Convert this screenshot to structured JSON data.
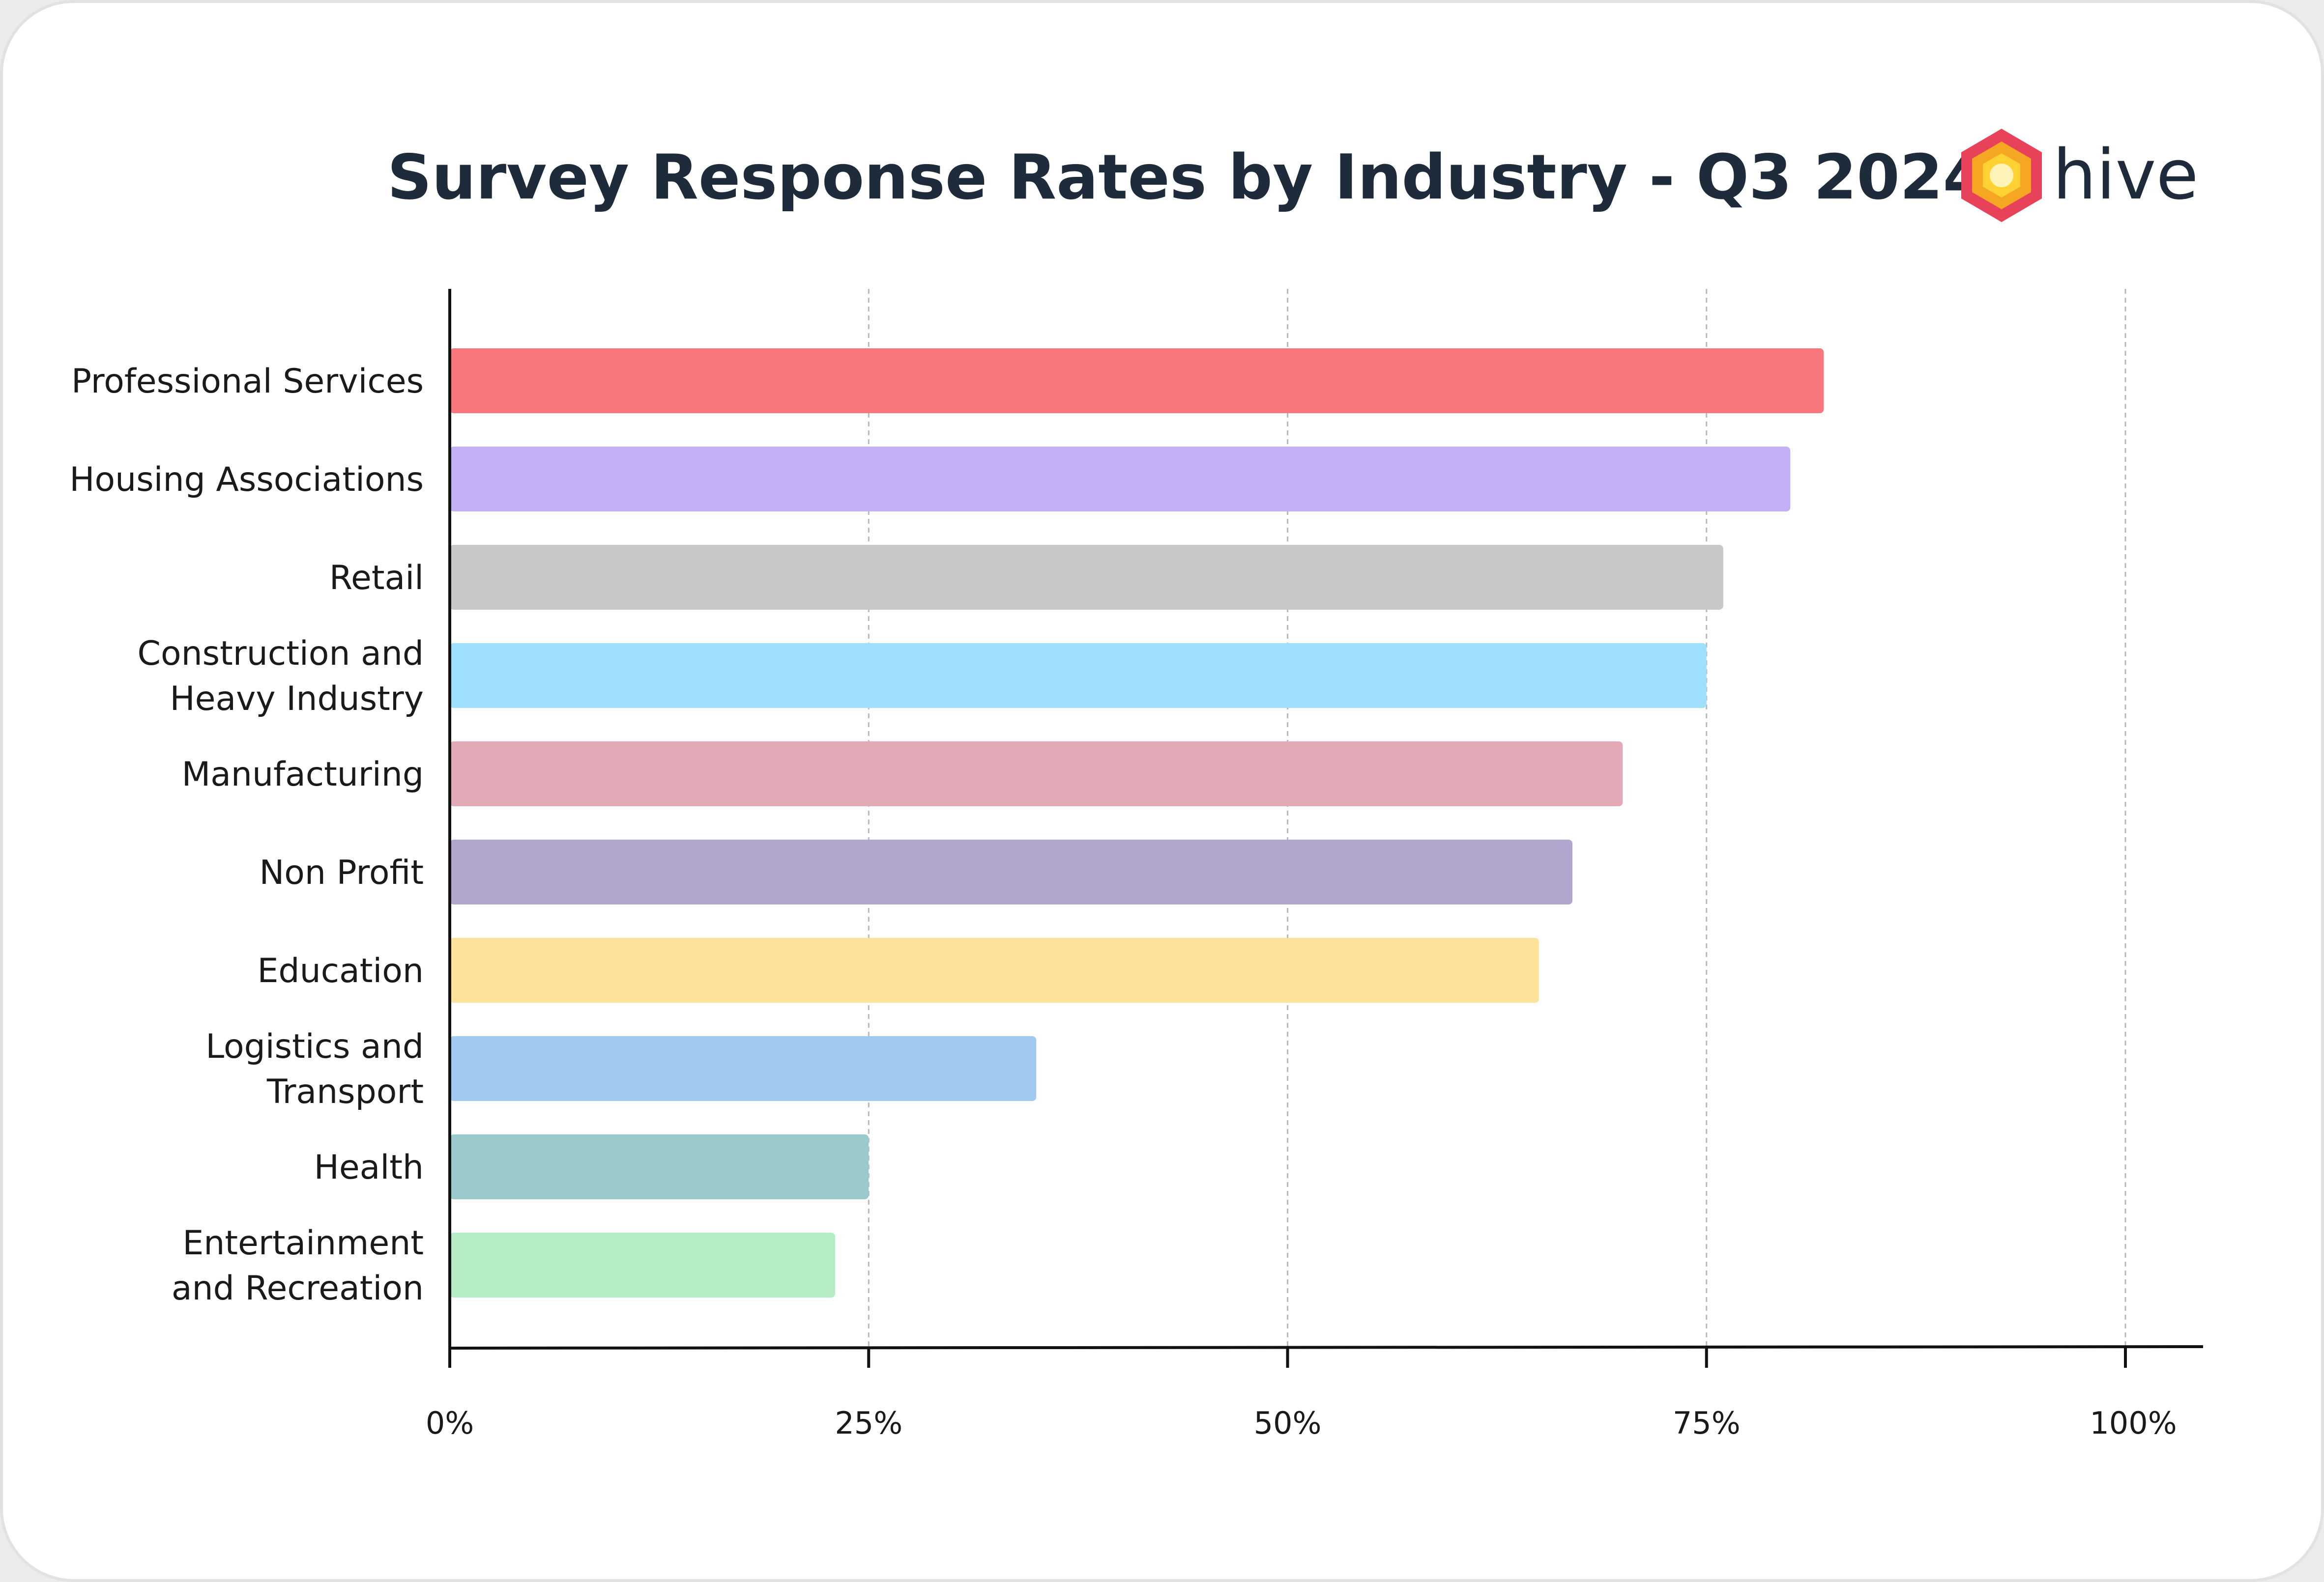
{
  "brand": {
    "name": "hive",
    "colors": {
      "outer": "#e8425a",
      "middle": "#f5a623",
      "inner": "#ffd233",
      "center": "#fff4b8"
    }
  },
  "chart_data": {
    "type": "bar",
    "orientation": "horizontal",
    "title": "Survey Response Rates by Industry - Q3 2024",
    "xlabel": "",
    "ylabel": "",
    "xlim": [
      0,
      100
    ],
    "grid": "vertical dashed",
    "ticks": [
      {
        "value": 0,
        "label": "0%"
      },
      {
        "value": 25,
        "label": "25%"
      },
      {
        "value": 50,
        "label": "50%"
      },
      {
        "value": 75,
        "label": "75%"
      },
      {
        "value": 100,
        "label": "100%"
      }
    ],
    "bars": [
      {
        "label": [
          "Professional Services"
        ],
        "value": 82,
        "color": "#f7777c"
      },
      {
        "label": [
          "Housing Associations"
        ],
        "value": 80,
        "color": "#c4b0f6"
      },
      {
        "label": [
          "Retail"
        ],
        "value": 76,
        "color": "#c8c8c8"
      },
      {
        "label": [
          "Construction and",
          "Heavy Industry"
        ],
        "value": 75,
        "color": "#9ee0fd"
      },
      {
        "label": [
          "Manufacturing"
        ],
        "value": 70,
        "color": "#e2aab6"
      },
      {
        "label": [
          "Non Profit"
        ],
        "value": 67,
        "color": "#b2a6cf"
      },
      {
        "label": [
          "Education"
        ],
        "value": 65,
        "color": "#fee19b"
      },
      {
        "label": [
          "Logistics and",
          "Transport"
        ],
        "value": 35,
        "color": "#a1caf1"
      },
      {
        "label": [
          "Health"
        ],
        "value": 25,
        "color": "#9acacc"
      },
      {
        "label": [
          "Entertainment",
          "and Recreation"
        ],
        "value": 23,
        "color": "#b4ecc6"
      }
    ]
  }
}
